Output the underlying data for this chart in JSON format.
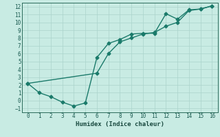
{
  "xlabel": "Humidex (Indice chaleur)",
  "bg_color": "#c8ebe3",
  "grid_color": "#aad4cc",
  "line_color": "#1a7a6a",
  "line1_x": [
    0,
    1,
    2,
    3,
    4,
    5,
    6,
    7,
    8,
    9,
    10,
    11,
    12,
    13,
    14,
    15,
    16
  ],
  "line1_y": [
    2.2,
    1.0,
    0.5,
    -0.2,
    -0.7,
    -0.3,
    5.5,
    7.3,
    7.8,
    8.5,
    8.6,
    8.6,
    11.1,
    10.4,
    11.6,
    11.7,
    12.1
  ],
  "line2_x": [
    0,
    6,
    7,
    8,
    9,
    10,
    11,
    12,
    13,
    14,
    15,
    16
  ],
  "line2_y": [
    2.2,
    3.5,
    6.0,
    7.5,
    8.0,
    8.5,
    8.7,
    9.5,
    10.0,
    11.5,
    11.7,
    12.1
  ],
  "xlim": [
    -0.5,
    16.5
  ],
  "ylim": [
    -1.5,
    12.5
  ],
  "xticks": [
    0,
    1,
    2,
    3,
    4,
    5,
    6,
    7,
    8,
    9,
    10,
    11,
    12,
    13,
    14,
    15,
    16
  ],
  "yticks": [
    -1,
    0,
    1,
    2,
    3,
    4,
    5,
    6,
    7,
    8,
    9,
    10,
    11,
    12
  ],
  "marker": "D",
  "marker_size": 2.5,
  "linewidth": 1.0,
  "xlabel_fontsize": 6.5,
  "tick_fontsize": 5.5
}
